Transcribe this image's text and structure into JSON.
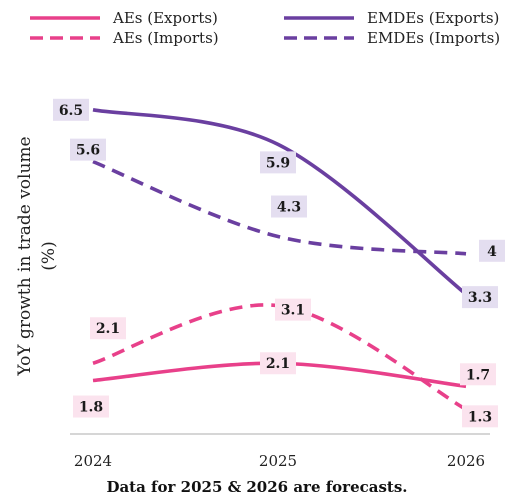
{
  "chart_data": {
    "type": "line",
    "x": [
      "2024",
      "2025",
      "2026"
    ],
    "ylabel": "YoY growth in trade volume (%)",
    "ylabel_lines": [
      "YoY growth in trade volume",
      "(%)"
    ],
    "ylim": [
      1.0,
      6.8
    ],
    "grid": false,
    "legend_position": "top",
    "series": [
      {
        "name": "AEs (Exports)",
        "values": [
          1.8,
          2.1,
          1.7
        ],
        "color": "#e8408a",
        "dash": "solid",
        "label_bg": "#fbe3ee"
      },
      {
        "name": "EMDEs (Exports)",
        "values": [
          6.5,
          5.9,
          3.3
        ],
        "color": "#6a3fa0",
        "dash": "solid",
        "label_bg": "#e4def0"
      },
      {
        "name": "AEs (Imports)",
        "values": [
          2.1,
          3.1,
          1.3
        ],
        "color": "#e8408a",
        "dash": "dashed",
        "label_bg": "#fbe3ee"
      },
      {
        "name": "EMDEs (Imports)",
        "values": [
          5.6,
          4.3,
          4.0
        ],
        "color": "#6a3fa0",
        "dash": "dashed",
        "label_bg": "#e4def0"
      }
    ],
    "data_labels": [
      [
        "1.8",
        "2.1",
        "1.7"
      ],
      [
        "6.5",
        "5.9",
        "3.3"
      ],
      [
        "2.1",
        "3.1",
        "1.3"
      ],
      [
        "5.6",
        "4.3",
        "4"
      ]
    ]
  },
  "footnote": "Data for 2025 & 2026 are forecasts."
}
